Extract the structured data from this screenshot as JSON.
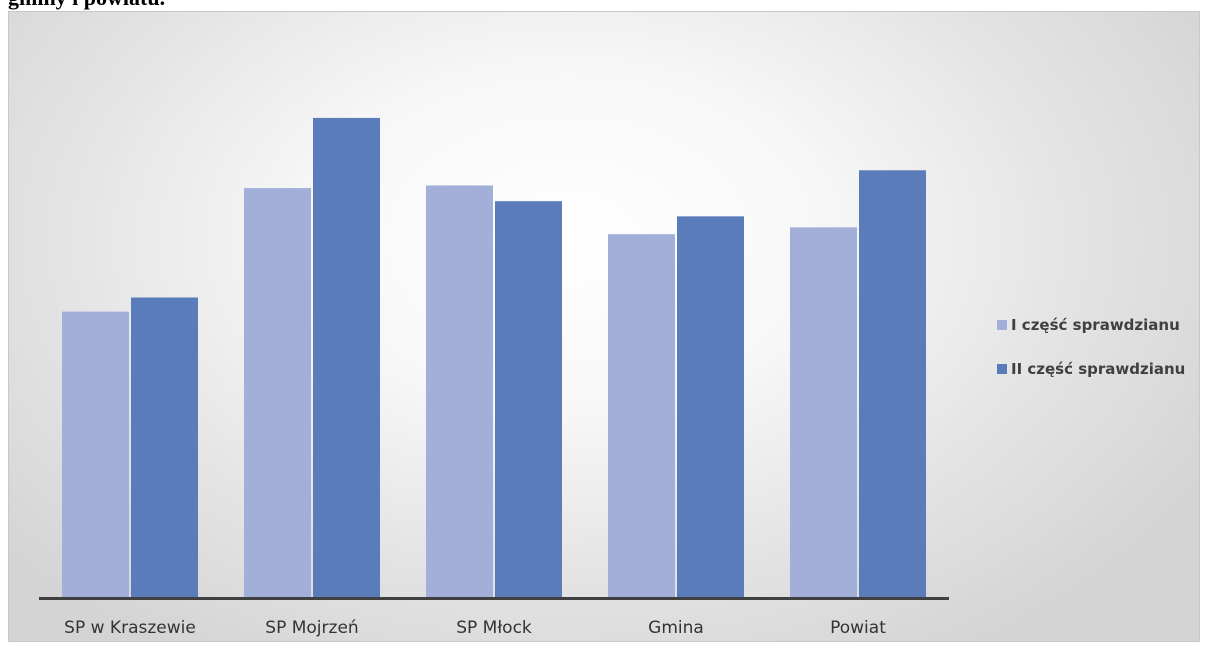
{
  "heading": "gminy i powiatu.",
  "chart_data": {
    "type": "bar",
    "categories": [
      "SP w Kraszewie",
      "SP Mojrzeń",
      "SP Młock",
      "Gmina",
      "Powiat"
    ],
    "series": [
      {
        "name": "I część sprawdzianu",
        "color": "#a2afd9",
        "values": [
          54.5,
          78.1,
          78.6,
          69.3,
          70.6
        ]
      },
      {
        "name": "II część sprawdzianu",
        "color": "#5a7cbb",
        "values": [
          57.2,
          91.5,
          75.6,
          72.7,
          81.5
        ]
      }
    ],
    "ylim": [
      0,
      106
    ],
    "legend": "right",
    "grid": false
  }
}
